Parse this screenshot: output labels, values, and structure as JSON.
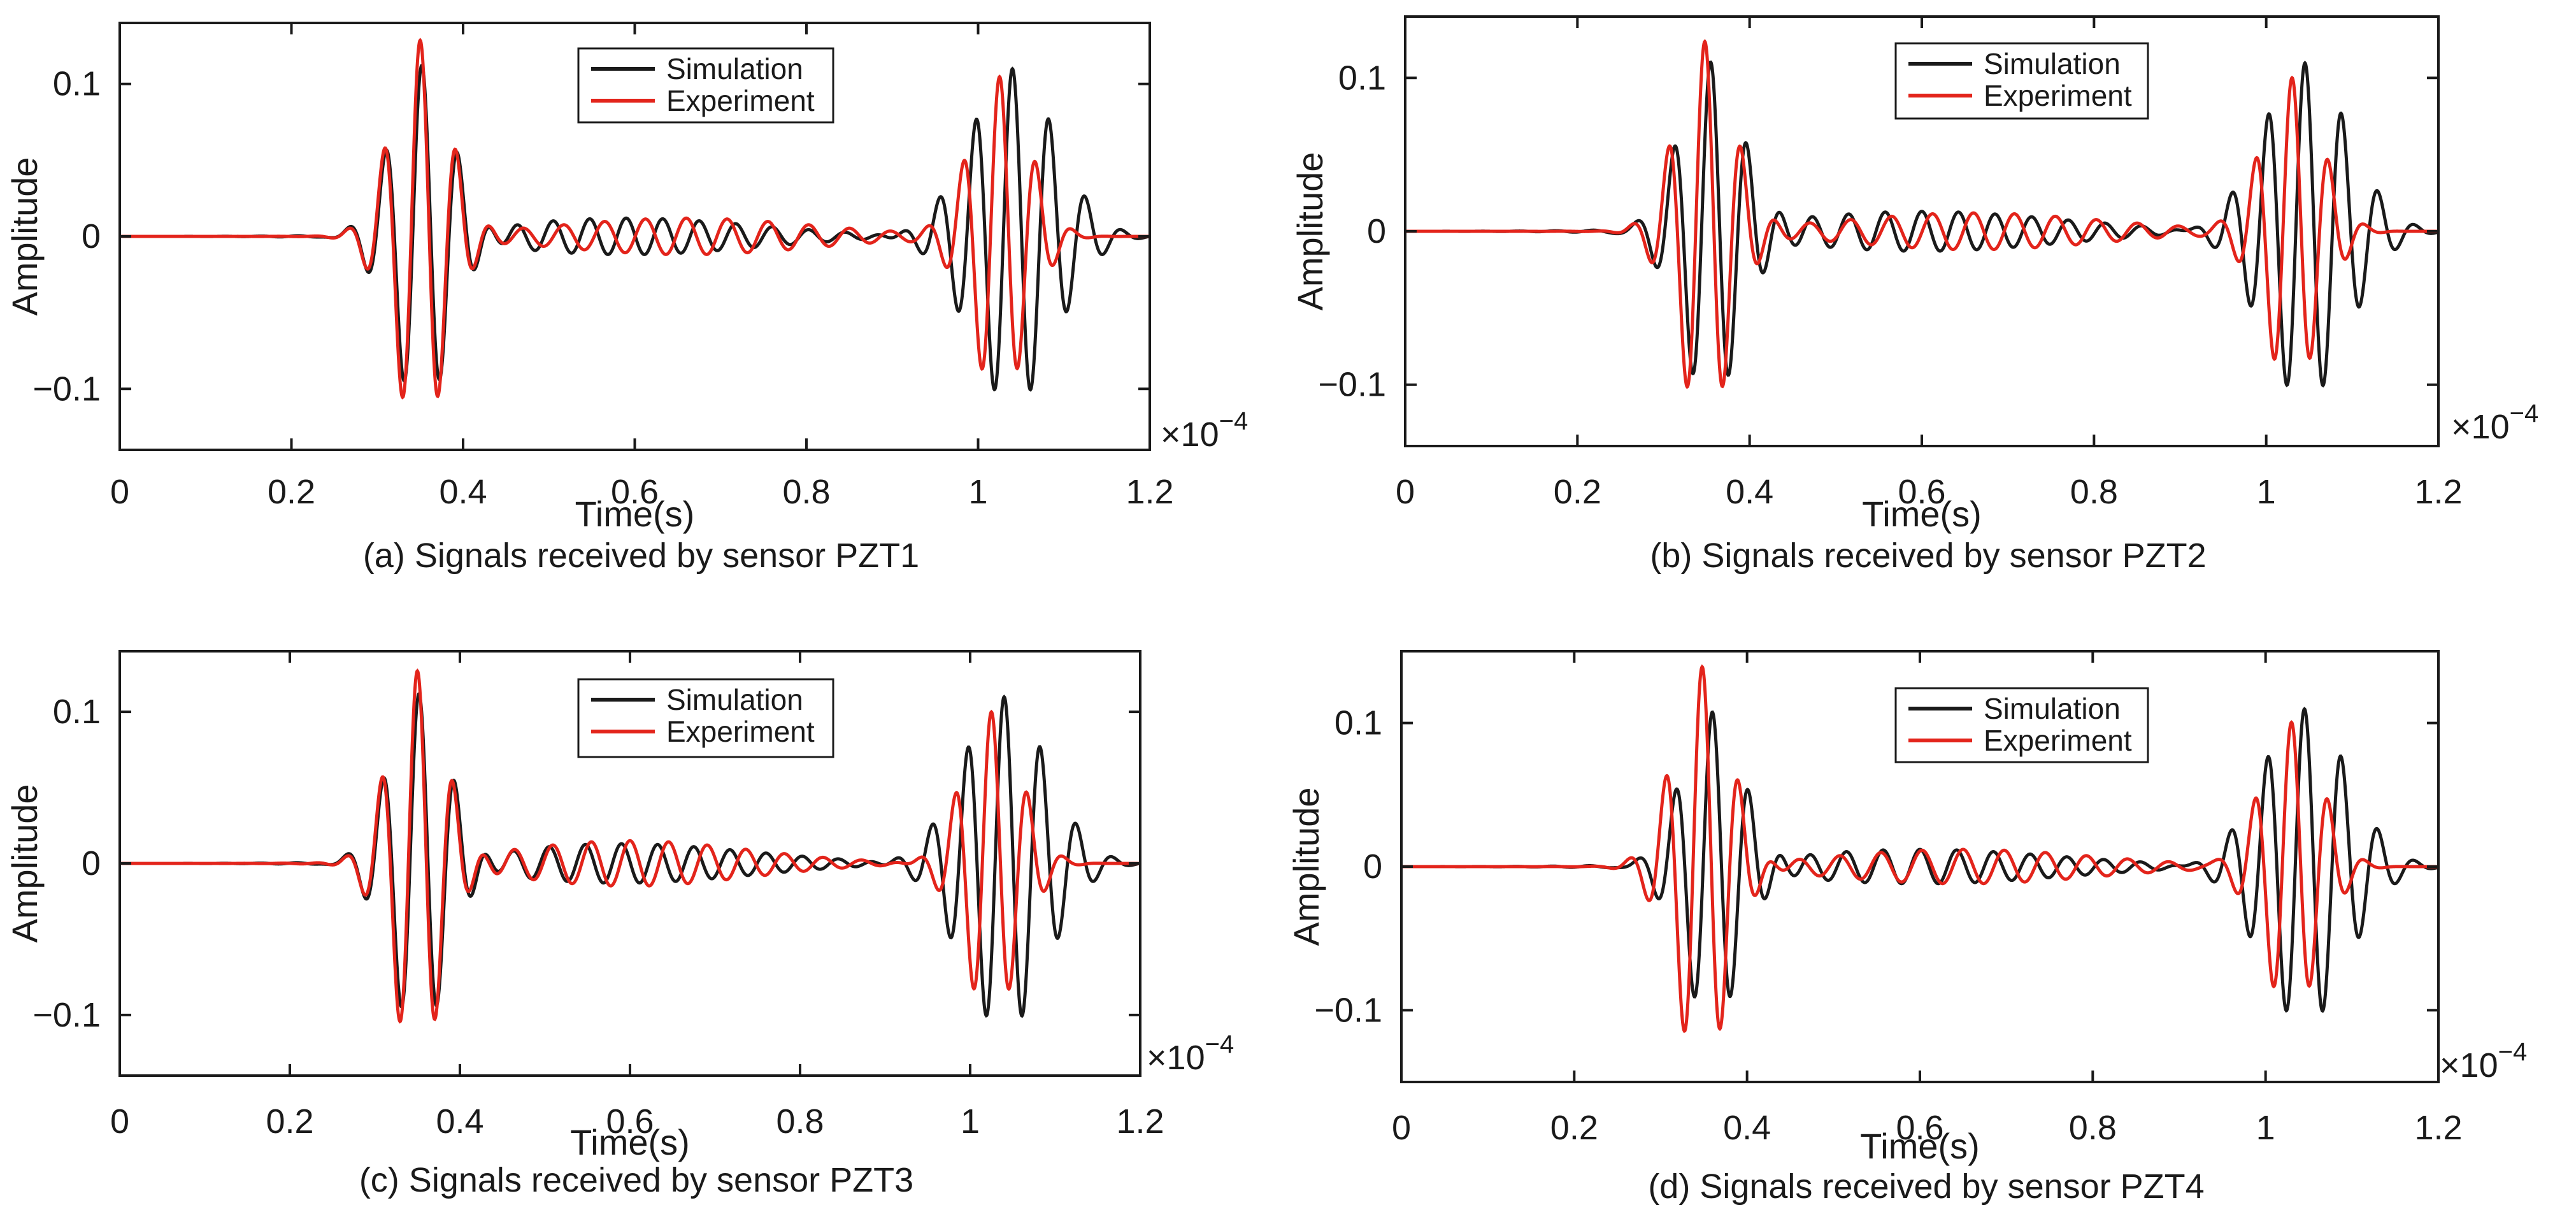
{
  "figure": {
    "colors": {
      "simulation": "#1a1a1a",
      "experiment": "#e3241b",
      "axis": "#1a1a1a",
      "background": "#ffffff"
    }
  },
  "chart_data": [
    {
      "id": "a",
      "type": "line",
      "caption": "(a) Signals received by sensor PZT1",
      "xlabel": "Time(s)",
      "ylabel": "Amplitude",
      "x_exponent_label": "×10",
      "x_exponent_power": "−4",
      "xlim": [
        0,
        1.2
      ],
      "ylim": [
        -0.14,
        0.14
      ],
      "xticks": [
        0,
        0.2,
        0.4,
        0.6,
        0.8,
        1.0,
        1.2
      ],
      "xtick_labels": [
        "0",
        "0.2",
        "0.4",
        "0.6",
        "0.8",
        "1",
        "1.2"
      ],
      "yticks": [
        -0.1,
        0,
        0.1
      ],
      "ytick_labels": [
        "−0.1",
        "0",
        "0.1"
      ],
      "legend": {
        "position": "top-center",
        "entries": [
          "Simulation",
          "Experiment"
        ]
      },
      "series": [
        {
          "name": "Simulation",
          "packets": [
            {
              "center": 0.352,
              "amp": 0.115,
              "width": 0.036,
              "freq": 23.5
            },
            {
              "center": 0.59,
              "amp": 0.012,
              "width": 0.15,
              "freq": 23.5
            },
            {
              "center": 1.04,
              "amp": 0.11,
              "width": 0.05,
              "freq": 23.5
            }
          ]
        },
        {
          "name": "Experiment",
          "packets": [
            {
              "center": 0.35,
              "amp": 0.13,
              "width": 0.033,
              "freq": 23.5
            },
            {
              "center": 0.66,
              "amp": 0.012,
              "width": 0.15,
              "freq": 21.0
            },
            {
              "center": 1.025,
              "amp": 0.105,
              "width": 0.034,
              "freq": 23.5
            }
          ]
        }
      ]
    },
    {
      "id": "b",
      "type": "line",
      "caption": "(b) Signals received by sensor PZT2",
      "xlabel": "Time(s)",
      "ylabel": "Amplitude",
      "x_exponent_label": "×10",
      "x_exponent_power": "−4",
      "xlim": [
        0,
        1.2
      ],
      "ylim": [
        -0.14,
        0.14
      ],
      "xticks": [
        0,
        0.2,
        0.4,
        0.6,
        0.8,
        1.0,
        1.2
      ],
      "xtick_labels": [
        "0",
        "0.2",
        "0.4",
        "0.6",
        "0.8",
        "1",
        "1.2"
      ],
      "yticks": [
        -0.1,
        0,
        0.1
      ],
      "ytick_labels": [
        "−0.1",
        "0",
        "0.1"
      ],
      "legend": {
        "position": "top-right",
        "entries": [
          "Simulation",
          "Experiment"
        ]
      },
      "series": [
        {
          "name": "Simulation",
          "packets": [
            {
              "center": 0.355,
              "amp": 0.11,
              "width": 0.036,
              "freq": 23.5
            },
            {
              "center": 0.6,
              "amp": 0.013,
              "width": 0.16,
              "freq": 23.5
            },
            {
              "center": 1.045,
              "amp": 0.11,
              "width": 0.05,
              "freq": 23.5
            }
          ]
        },
        {
          "name": "Experiment",
          "packets": [
            {
              "center": 0.348,
              "amp": 0.125,
              "width": 0.033,
              "freq": 23.5
            },
            {
              "center": 0.66,
              "amp": 0.012,
              "width": 0.15,
              "freq": 21.0
            },
            {
              "center": 1.03,
              "amp": 0.1,
              "width": 0.034,
              "freq": 23.5
            }
          ]
        }
      ]
    },
    {
      "id": "c",
      "type": "line",
      "caption": "(c) Signals received by sensor PZT3",
      "xlabel": "Time(s)",
      "ylabel": "Amplitude",
      "x_exponent_label": "×10",
      "x_exponent_power": "−4",
      "xlim": [
        0,
        1.2
      ],
      "ylim": [
        -0.14,
        0.14
      ],
      "xticks": [
        0,
        0.2,
        0.4,
        0.6,
        0.8,
        1.0,
        1.2
      ],
      "xtick_labels": [
        "0",
        "0.2",
        "0.4",
        "0.6",
        "0.8",
        "1",
        "1.2"
      ],
      "yticks": [
        -0.1,
        0,
        0.1
      ],
      "ytick_labels": [
        "−0.1",
        "0",
        "0.1"
      ],
      "legend": {
        "position": "top-center",
        "entries": [
          "Simulation",
          "Experiment"
        ]
      },
      "series": [
        {
          "name": "Simulation",
          "packets": [
            {
              "center": 0.352,
              "amp": 0.115,
              "width": 0.036,
              "freq": 23.5
            },
            {
              "center": 0.59,
              "amp": 0.013,
              "width": 0.15,
              "freq": 23.5
            },
            {
              "center": 1.04,
              "amp": 0.11,
              "width": 0.05,
              "freq": 23.5
            }
          ]
        },
        {
          "name": "Experiment",
          "packets": [
            {
              "center": 0.35,
              "amp": 0.13,
              "width": 0.033,
              "freq": 23.5
            },
            {
              "center": 0.6,
              "amp": 0.015,
              "width": 0.14,
              "freq": 22.0
            },
            {
              "center": 1.025,
              "amp": 0.1,
              "width": 0.034,
              "freq": 23.5
            }
          ]
        }
      ]
    },
    {
      "id": "d",
      "type": "line",
      "caption": "(d) Signals received by sensor PZT4",
      "xlabel": "Time(s)",
      "ylabel": "Amplitude",
      "x_exponent_label": "×10",
      "x_exponent_power": "−4",
      "xlim": [
        0,
        1.2
      ],
      "ylim": [
        -0.15,
        0.15
      ],
      "xticks": [
        0,
        0.2,
        0.4,
        0.6,
        0.8,
        1.0,
        1.2
      ],
      "xtick_labels": [
        "0",
        "0.2",
        "0.4",
        "0.6",
        "0.8",
        "1",
        "1.2"
      ],
      "yticks": [
        -0.1,
        0,
        0.1
      ],
      "ytick_labels": [
        "−0.1",
        "0",
        "0.1"
      ],
      "legend": {
        "position": "top-right",
        "entries": [
          "Simulation",
          "Experiment"
        ]
      },
      "series": [
        {
          "name": "Simulation",
          "packets": [
            {
              "center": 0.36,
              "amp": 0.11,
              "width": 0.036,
              "freq": 23.5
            },
            {
              "center": 0.6,
              "amp": 0.012,
              "width": 0.16,
              "freq": 23.5
            },
            {
              "center": 1.045,
              "amp": 0.11,
              "width": 0.05,
              "freq": 23.5
            }
          ]
        },
        {
          "name": "Experiment",
          "packets": [
            {
              "center": 0.348,
              "amp": 0.14,
              "width": 0.033,
              "freq": 23.5
            },
            {
              "center": 0.65,
              "amp": 0.012,
              "width": 0.15,
              "freq": 21.0
            },
            {
              "center": 1.03,
              "amp": 0.1,
              "width": 0.034,
              "freq": 23.5
            }
          ]
        }
      ]
    }
  ]
}
